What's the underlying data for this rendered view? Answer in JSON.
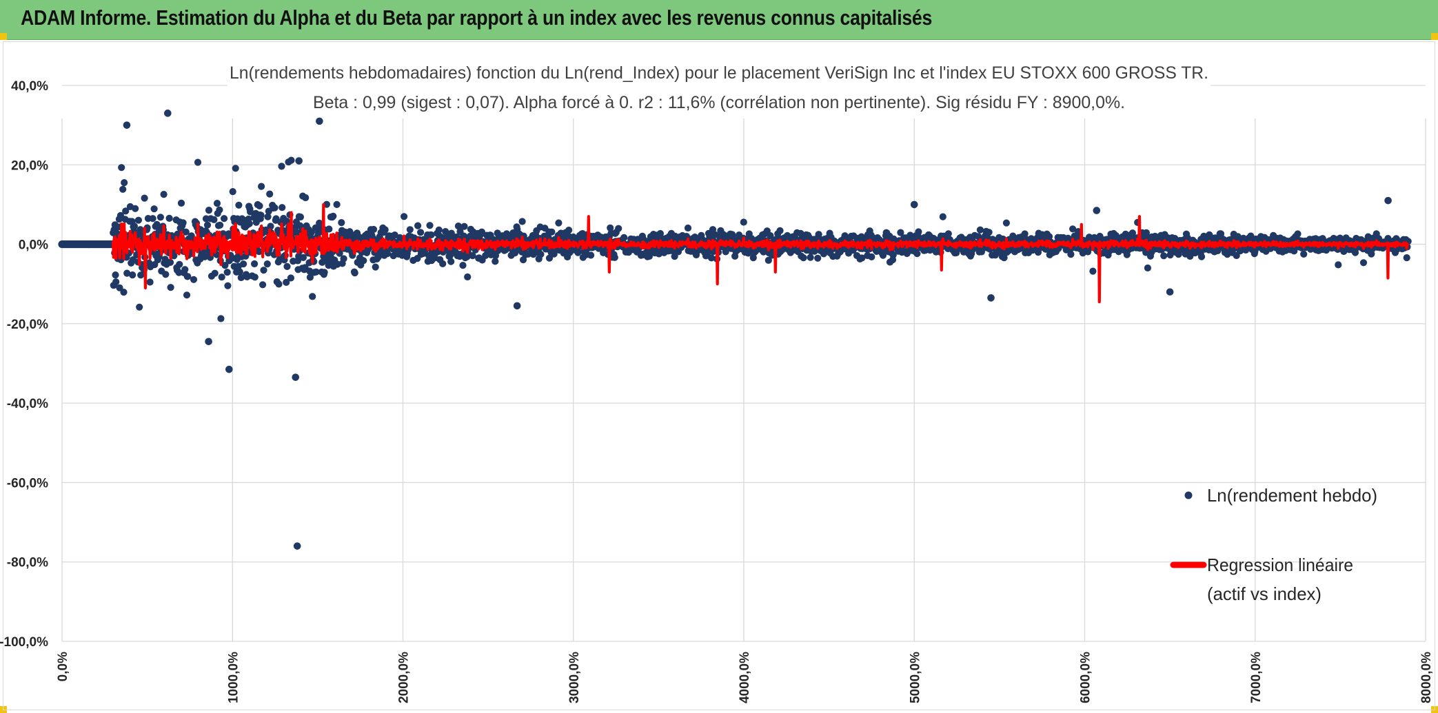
{
  "header": {
    "title": "ADAM Informe. Estimation du Alpha et du Beta par rapport à un index avec les revenus connus capitalisés"
  },
  "colors": {
    "header_bg": "#7dc87d",
    "points": "#1f3864",
    "regression": "#ff0000",
    "gridline": "#d9d9d9",
    "corner": "#f1c40f"
  },
  "chart_data": {
    "type": "scatter",
    "title_line1": "Ln(rendements hebdomadaires) fonction du Ln(rend_Index) pour le placement VeriSign Inc et l'index EU STOXX 600 GROSS TR.",
    "title_line2": "Beta : 0,99 (sigest : 0,07). Alpha forcé à 0. r2 : 11,6% (corrélation non pertinente). Sig résidu FY : 8900,0%.",
    "xlabel": "",
    "ylabel": "",
    "ylim": [
      -100,
      40
    ],
    "y_ticks": [
      "40,0%",
      "20,0%",
      "0,0%",
      "-20,0%",
      "-40,0%",
      "-60,0%",
      "-80,0%",
      "-100,0%"
    ],
    "y_tick_values": [
      40,
      20,
      0,
      -20,
      -40,
      -60,
      -80,
      -100
    ],
    "x_ticks": [
      "0,0%",
      "1000,0%",
      "2000,0%",
      "3000,0%",
      "4000,0%",
      "5000,0%",
      "6000,0%",
      "7000,0%",
      "8000,0%"
    ],
    "xlim": [
      0,
      8000
    ],
    "grid": true,
    "legend_position": "right",
    "series": [
      {
        "name": "Ln(rendement hebdo)",
        "kind": "points",
        "color": "#1f3864"
      },
      {
        "name_line1": "Regression linéaire",
        "name_line2": "(actif vs index)",
        "kind": "line",
        "color": "#ff0000"
      }
    ],
    "notable_points": [
      {
        "x": 380,
        "y": 30
      },
      {
        "x": 620,
        "y": 33
      },
      {
        "x": 1510,
        "y": 31
      },
      {
        "x": 1390,
        "y": 21
      },
      {
        "x": 980,
        "y": -31.5
      },
      {
        "x": 1370,
        "y": -33.5
      },
      {
        "x": 1380,
        "y": -76
      },
      {
        "x": 860,
        "y": -24.5
      },
      {
        "x": 2670,
        "y": -15.5
      },
      {
        "x": 5450,
        "y": -13.5
      },
      {
        "x": 6500,
        "y": -12
      },
      {
        "x": 7780,
        "y": 11
      },
      {
        "x": 5000,
        "y": 10
      },
      {
        "x": 6070,
        "y": 8.5
      }
    ]
  }
}
